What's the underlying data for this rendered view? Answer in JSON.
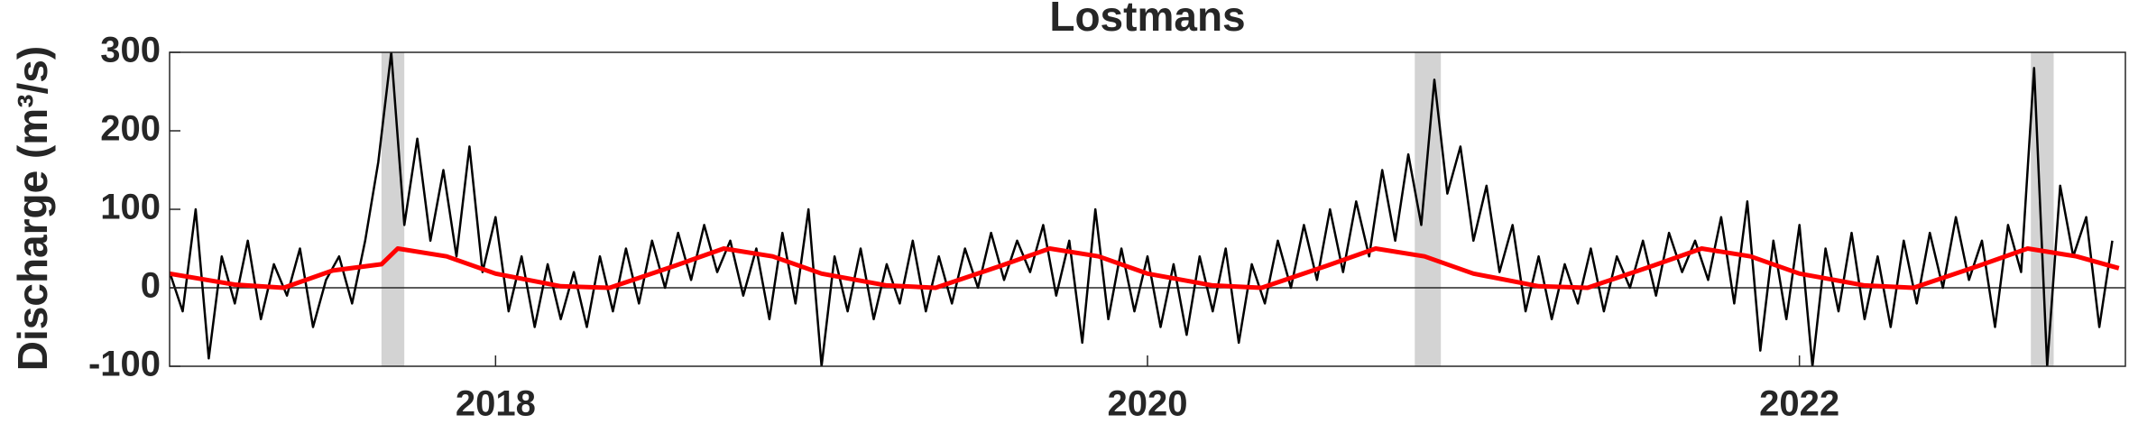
{
  "chart_data": {
    "type": "line",
    "title": "Lostmans",
    "ylabel": "Discharge (m³/s)",
    "xlim": [
      2017,
      2023
    ],
    "xticks": [
      2018,
      2020,
      2022
    ],
    "ylim": [
      -100,
      300
    ],
    "yticks": [
      -100,
      0,
      100,
      200,
      300
    ],
    "reference_line": 0,
    "shaded_periods": [
      [
        2017.65,
        2017.72
      ],
      [
        2020.82,
        2020.9
      ],
      [
        2022.71,
        2022.78
      ]
    ],
    "shade_color": "#d3d3d3",
    "series": [
      {
        "color": "#000000",
        "width": 2.5,
        "x": [
          2017,
          2017.04,
          2017.08,
          2017.12,
          2017.16,
          2017.2,
          2017.24,
          2017.28,
          2017.32,
          2017.36,
          2017.4,
          2017.44,
          2017.48,
          2017.52,
          2017.56,
          2017.6,
          2017.64,
          2017.68,
          2017.72,
          2017.76,
          2017.8,
          2017.84,
          2017.88,
          2017.92,
          2017.96,
          2018,
          2018.04,
          2018.08,
          2018.12,
          2018.16,
          2018.2,
          2018.24,
          2018.28,
          2018.32,
          2018.36,
          2018.4,
          2018.44,
          2018.48,
          2018.52,
          2018.56,
          2018.6,
          2018.64,
          2018.68,
          2018.72,
          2018.76,
          2018.8,
          2018.84,
          2018.88,
          2018.92,
          2018.96,
          2019,
          2019.04,
          2019.08,
          2019.12,
          2019.16,
          2019.2,
          2019.24,
          2019.28,
          2019.32,
          2019.36,
          2019.4,
          2019.44,
          2019.48,
          2019.52,
          2019.56,
          2019.6,
          2019.64,
          2019.68,
          2019.72,
          2019.76,
          2019.8,
          2019.84,
          2019.88,
          2019.92,
          2019.96,
          2020,
          2020.04,
          2020.08,
          2020.12,
          2020.16,
          2020.2,
          2020.24,
          2020.28,
          2020.32,
          2020.36,
          2020.4,
          2020.44,
          2020.48,
          2020.52,
          2020.56,
          2020.6,
          2020.64,
          2020.68,
          2020.72,
          2020.76,
          2020.8,
          2020.84,
          2020.88,
          2020.92,
          2020.96,
          2021,
          2021.04,
          2021.08,
          2021.12,
          2021.16,
          2021.2,
          2021.24,
          2021.28,
          2021.32,
          2021.36,
          2021.4,
          2021.44,
          2021.48,
          2021.52,
          2021.56,
          2021.6,
          2021.64,
          2021.68,
          2021.72,
          2021.76,
          2021.8,
          2021.84,
          2021.88,
          2021.92,
          2021.96,
          2022,
          2022.04,
          2022.08,
          2022.12,
          2022.16,
          2022.2,
          2022.24,
          2022.28,
          2022.32,
          2022.36,
          2022.4,
          2022.44,
          2022.48,
          2022.52,
          2022.56,
          2022.6,
          2022.64,
          2022.68,
          2022.72,
          2022.76,
          2022.8,
          2022.84,
          2022.88,
          2022.92,
          2022.96
        ],
        "values": [
          20,
          -30,
          100,
          -90,
          40,
          -20,
          60,
          -40,
          30,
          -10,
          50,
          -50,
          10,
          40,
          -20,
          60,
          160,
          300,
          80,
          190,
          60,
          150,
          40,
          180,
          20,
          90,
          -30,
          40,
          -50,
          30,
          -40,
          20,
          -50,
          40,
          -30,
          50,
          -20,
          60,
          0,
          70,
          10,
          80,
          20,
          60,
          -10,
          50,
          -40,
          70,
          -20,
          100,
          -100,
          40,
          -30,
          50,
          -40,
          30,
          -20,
          60,
          -30,
          40,
          -20,
          50,
          0,
          70,
          10,
          60,
          20,
          80,
          -10,
          60,
          -70,
          100,
          -40,
          50,
          -30,
          40,
          -50,
          30,
          -60,
          40,
          -30,
          50,
          -70,
          30,
          -20,
          60,
          0,
          80,
          10,
          100,
          20,
          110,
          40,
          150,
          60,
          170,
          80,
          265,
          120,
          180,
          60,
          130,
          20,
          80,
          -30,
          40,
          -40,
          30,
          -20,
          50,
          -30,
          40,
          0,
          60,
          -10,
          70,
          20,
          60,
          10,
          90,
          -20,
          110,
          -80,
          60,
          -40,
          80,
          -100,
          50,
          -30,
          70,
          -40,
          40,
          -50,
          60,
          -20,
          70,
          0,
          90,
          10,
          60,
          -50,
          80,
          20,
          280,
          -100,
          130,
          40,
          90,
          -50,
          60
        ]
      },
      {
        "color": "#ff0000",
        "width": 5,
        "x": [
          2017,
          2017.2,
          2017.35,
          2017.5,
          2017.65,
          2017.7,
          2017.85,
          2018,
          2018.2,
          2018.35,
          2018.55,
          2018.7,
          2018.85,
          2019,
          2019.2,
          2019.35,
          2019.55,
          2019.7,
          2019.85,
          2020,
          2020.2,
          2020.35,
          2020.55,
          2020.7,
          2020.85,
          2021,
          2021.2,
          2021.35,
          2021.55,
          2021.7,
          2021.85,
          2022,
          2022.2,
          2022.35,
          2022.55,
          2022.7,
          2022.85,
          2022.98
        ],
        "values": [
          18,
          4,
          0,
          22,
          30,
          50,
          40,
          18,
          2,
          0,
          28,
          50,
          40,
          18,
          3,
          0,
          28,
          50,
          40,
          18,
          3,
          0,
          28,
          50,
          40,
          18,
          2,
          0,
          28,
          50,
          40,
          18,
          3,
          0,
          28,
          50,
          40,
          25
        ]
      }
    ]
  }
}
